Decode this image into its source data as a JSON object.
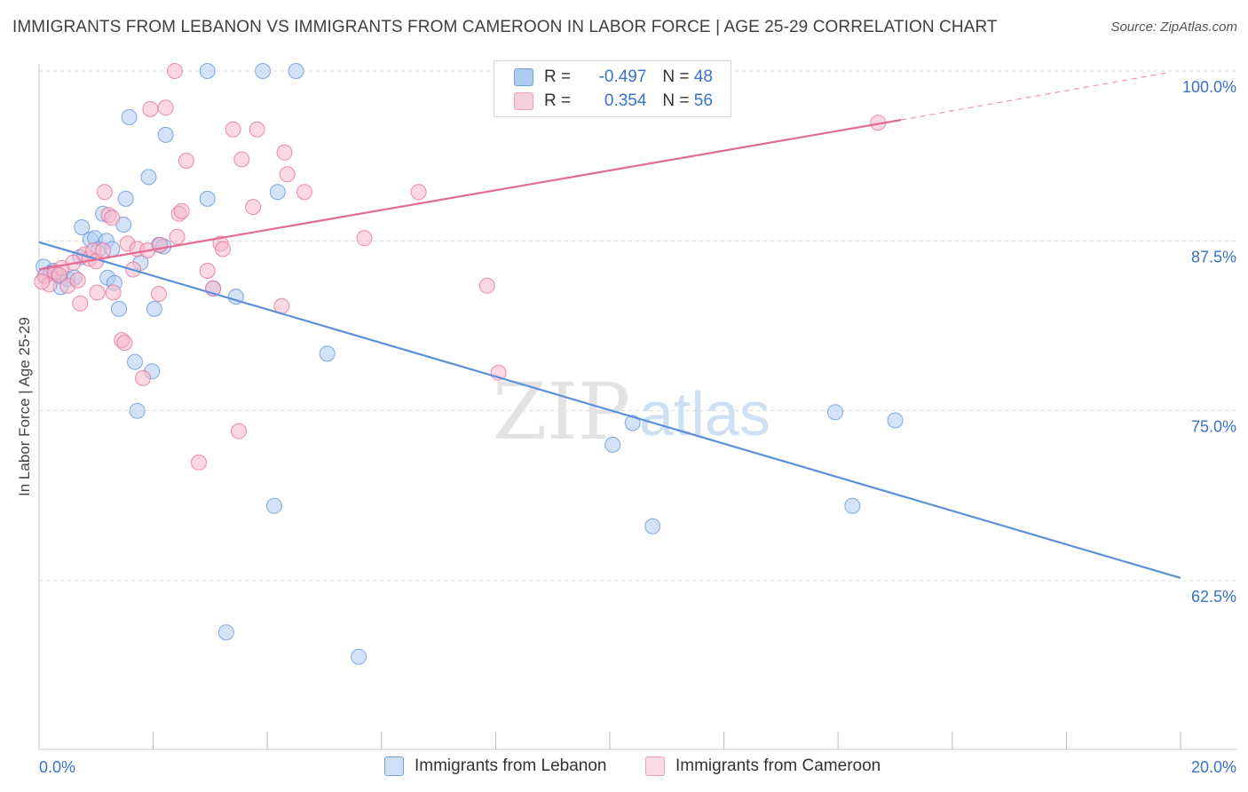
{
  "header": {
    "title": "IMMIGRANTS FROM LEBANON VS IMMIGRANTS FROM CAMEROON IN LABOR FORCE | AGE 25-29 CORRELATION CHART",
    "source": "Source: ZipAtlas.com"
  },
  "watermark": {
    "zip": "ZIP",
    "atlas": "atlas"
  },
  "legend": {
    "rows": [
      {
        "r_label": "R =",
        "r_value": "-0.497",
        "n_label": "N =",
        "n_value": "48",
        "color": "#aecbf0"
      },
      {
        "r_label": "R =",
        "r_value": "0.354",
        "n_label": "N =",
        "n_value": "56",
        "color": "#f7b8cb"
      }
    ]
  },
  "chart_data": {
    "type": "scatter",
    "title": "IMMIGRANTS FROM LEBANON VS IMMIGRANTS FROM CAMEROON IN LABOR FORCE | AGE 25-29 CORRELATION CHART",
    "xlabel": "",
    "ylabel": "In Labor Force | Age 25-29",
    "xlim": [
      0,
      20
    ],
    "ylim": [
      50,
      101
    ],
    "x_tick_labels": [
      "0.0%",
      "20.0%"
    ],
    "y_ticks": [
      62.5,
      75.0,
      87.5,
      100.0
    ],
    "y_tick_labels": [
      "62.5%",
      "75.0%",
      "87.5%",
      "100.0%"
    ],
    "grid": true,
    "legend_position": "top-center",
    "series": [
      {
        "name": "Immigrants from Lebanon",
        "color": "#5b8fd9",
        "fill": "#aecbf0",
        "trend": {
          "x": [
            0,
            20
          ],
          "y": [
            87.4,
            62.7
          ]
        },
        "points": [
          [
            0.08,
            85.6
          ],
          [
            0.12,
            85.0
          ],
          [
            0.25,
            85.3
          ],
          [
            0.35,
            84.9
          ],
          [
            0.38,
            84.1
          ],
          [
            0.5,
            84.7
          ],
          [
            0.62,
            84.8
          ],
          [
            0.72,
            86.3
          ],
          [
            0.75,
            88.5
          ],
          [
            0.9,
            87.6
          ],
          [
            0.98,
            87.7
          ],
          [
            1.05,
            86.9
          ],
          [
            1.12,
            89.5
          ],
          [
            1.18,
            87.5
          ],
          [
            1.2,
            84.8
          ],
          [
            1.28,
            86.9
          ],
          [
            1.32,
            84.4
          ],
          [
            1.4,
            82.5
          ],
          [
            1.48,
            88.7
          ],
          [
            1.52,
            90.6
          ],
          [
            1.58,
            96.6
          ],
          [
            1.68,
            78.6
          ],
          [
            1.72,
            75.0
          ],
          [
            1.78,
            85.9
          ],
          [
            1.92,
            92.2
          ],
          [
            1.98,
            77.9
          ],
          [
            2.02,
            82.5
          ],
          [
            2.1,
            87.2
          ],
          [
            2.18,
            87.1
          ],
          [
            2.22,
            95.3
          ],
          [
            2.95,
            100.0
          ],
          [
            2.95,
            90.6
          ],
          [
            3.05,
            84.0
          ],
          [
            3.28,
            58.7
          ],
          [
            3.45,
            83.4
          ],
          [
            3.92,
            100.0
          ],
          [
            4.12,
            68.0
          ],
          [
            4.18,
            91.1
          ],
          [
            4.5,
            100.0
          ],
          [
            5.05,
            79.2
          ],
          [
            5.6,
            56.9
          ],
          [
            10.05,
            72.5
          ],
          [
            10.4,
            74.1
          ],
          [
            10.75,
            66.5
          ],
          [
            13.95,
            74.9
          ],
          [
            14.25,
            68.0
          ],
          [
            15.0,
            74.3
          ],
          [
            0.2,
            85.1
          ]
        ]
      },
      {
        "name": "Immigrants from Cameroon",
        "color": "#e26b94",
        "fill": "#f7b8cb",
        "trend": {
          "x": [
            0,
            15.1
          ],
          "y": [
            85.4,
            96.4
          ]
        },
        "trend_dashed": {
          "x": [
            15.1,
            19.8
          ],
          "y": [
            96.4,
            99.9
          ]
        },
        "points": [
          [
            0.1,
            84.9
          ],
          [
            0.18,
            84.3
          ],
          [
            0.28,
            85.2
          ],
          [
            0.4,
            85.5
          ],
          [
            0.5,
            84.2
          ],
          [
            0.6,
            85.9
          ],
          [
            0.68,
            84.6
          ],
          [
            0.72,
            82.9
          ],
          [
            0.8,
            86.5
          ],
          [
            0.88,
            86.2
          ],
          [
            0.95,
            86.8
          ],
          [
            1.0,
            86.0
          ],
          [
            1.02,
            83.7
          ],
          [
            1.12,
            86.8
          ],
          [
            1.15,
            91.1
          ],
          [
            1.22,
            89.4
          ],
          [
            1.28,
            89.2
          ],
          [
            1.3,
            83.7
          ],
          [
            1.45,
            80.2
          ],
          [
            1.5,
            80.0
          ],
          [
            1.55,
            87.3
          ],
          [
            1.65,
            85.4
          ],
          [
            1.72,
            86.9
          ],
          [
            1.82,
            77.4
          ],
          [
            1.9,
            86.8
          ],
          [
            1.95,
            97.2
          ],
          [
            2.1,
            83.6
          ],
          [
            2.12,
            87.2
          ],
          [
            2.22,
            97.3
          ],
          [
            2.38,
            100.0
          ],
          [
            2.42,
            87.8
          ],
          [
            2.45,
            89.5
          ],
          [
            2.5,
            89.7
          ],
          [
            2.58,
            93.4
          ],
          [
            2.8,
            71.2
          ],
          [
            2.95,
            85.3
          ],
          [
            3.05,
            84.0
          ],
          [
            3.18,
            87.3
          ],
          [
            3.22,
            86.9
          ],
          [
            3.4,
            95.7
          ],
          [
            3.5,
            73.5
          ],
          [
            3.55,
            93.5
          ],
          [
            3.75,
            90.0
          ],
          [
            3.82,
            95.7
          ],
          [
            4.25,
            82.7
          ],
          [
            4.3,
            94.0
          ],
          [
            4.35,
            92.4
          ],
          [
            4.65,
            91.1
          ],
          [
            5.7,
            87.7
          ],
          [
            6.65,
            91.1
          ],
          [
            7.85,
            84.2
          ],
          [
            8.05,
            77.8
          ],
          [
            9.05,
            100.0
          ],
          [
            14.7,
            96.2
          ],
          [
            0.05,
            84.5
          ],
          [
            0.35,
            85.0
          ]
        ]
      }
    ]
  },
  "bottom_legend": [
    {
      "label": "Immigrants from Lebanon",
      "color": "#aecbf0",
      "border": "#6f9fe0"
    },
    {
      "label": "Immigrants from Cameroon",
      "color": "#f7cfdc",
      "border": "#ee9fba"
    }
  ]
}
